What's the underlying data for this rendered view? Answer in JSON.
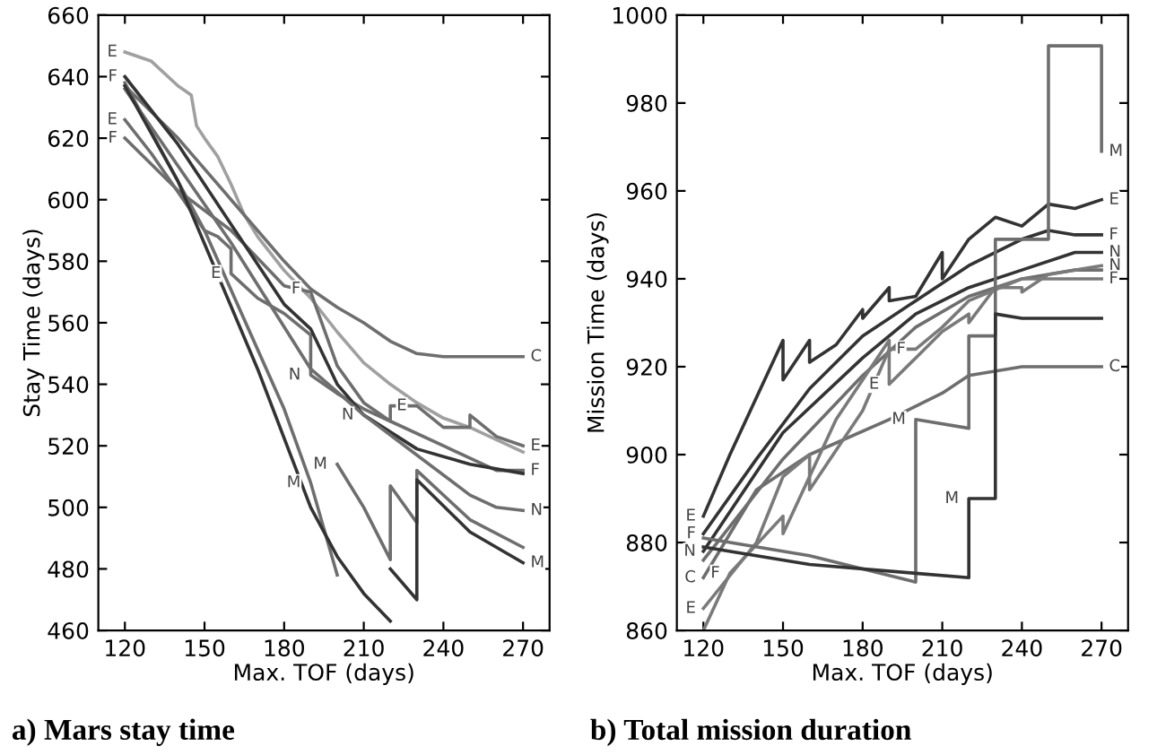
{
  "chart_data": [
    {
      "type": "line",
      "title": "a) Mars stay time",
      "xlabel": "Max. TOF (days)",
      "ylabel": "Stay Time (days)",
      "xlim": [
        110,
        280
      ],
      "xticks": [
        120,
        150,
        180,
        210,
        240,
        270
      ],
      "ylim": [
        460,
        660
      ],
      "yticks": [
        460,
        480,
        500,
        520,
        540,
        560,
        580,
        600,
        620,
        640,
        660
      ],
      "grid": false,
      "legend": false,
      "series": [
        {
          "color": "#a0a0a0",
          "x": [
            120,
            130,
            140,
            145,
            147,
            150,
            155,
            160,
            165,
            170,
            180,
            190,
            200,
            210,
            220,
            230,
            240,
            250,
            260,
            270
          ],
          "values": [
            648,
            645,
            637,
            634,
            624,
            620,
            614,
            605,
            595,
            588,
            577,
            568,
            557,
            547,
            540,
            534,
            529,
            526,
            522,
            518
          ]
        },
        {
          "color": "#6e6e6e",
          "x": [
            120,
            140,
            160,
            180,
            190,
            200,
            210,
            220,
            230,
            240,
            270
          ],
          "values": [
            637,
            620,
            600,
            580,
            571,
            565,
            560,
            554,
            550,
            549,
            549
          ]
        },
        {
          "color": "#6e6e6e",
          "x": [
            120,
            130,
            150,
            155,
            160,
            160,
            170,
            180,
            190,
            190,
            200,
            210,
            220,
            220,
            230,
            240,
            250,
            250,
            260,
            270
          ],
          "values": [
            626,
            615,
            590,
            588,
            584,
            576,
            568,
            563,
            556,
            543,
            537,
            532,
            528,
            533,
            533,
            526,
            526,
            530,
            523,
            520
          ]
        },
        {
          "color": "#6e6e6e",
          "x": [
            120,
            140,
            160,
            180,
            190,
            200,
            210,
            220,
            240,
            260,
            270
          ],
          "values": [
            620,
            603,
            590,
            572,
            570,
            546,
            534,
            528,
            520,
            512,
            512
          ]
        },
        {
          "color": "#333333",
          "x": [
            120,
            140,
            160,
            180,
            190,
            200,
            210,
            230,
            250,
            270
          ],
          "values": [
            640,
            618,
            592,
            566,
            558,
            540,
            530,
            519,
            514,
            511
          ]
        },
        {
          "color": "#6e6e6e",
          "x": [
            120,
            160,
            190,
            210,
            230,
            250,
            260,
            270
          ],
          "values": [
            636,
            586,
            545,
            530,
            517,
            504,
            500,
            499
          ]
        },
        {
          "color": "#6e6e6e",
          "x": [
            120,
            150,
            180,
            190,
            200
          ],
          "values": [
            638,
            590,
            532,
            508,
            478
          ]
        },
        {
          "color": "#333333",
          "x": [
            120,
            140,
            170,
            190,
            200,
            210,
            220
          ],
          "values": [
            637,
            606,
            545,
            500,
            484,
            472,
            463
          ]
        },
        {
          "color": "#6e6e6e",
          "x": [
            200,
            210,
            220,
            220,
            230,
            230,
            250,
            270
          ],
          "values": [
            514,
            500,
            483,
            507,
            495,
            512,
            496,
            487
          ]
        },
        {
          "color": "#333333",
          "x": [
            220,
            230,
            230,
            250,
            270
          ],
          "values": [
            480,
            470,
            509,
            492,
            482
          ]
        }
      ],
      "annotations": [
        {
          "text": "E",
          "x": 120,
          "y": 648
        },
        {
          "text": "F",
          "x": 120,
          "y": 640
        },
        {
          "text": "E",
          "x": 120,
          "y": 626
        },
        {
          "text": "F",
          "x": 120,
          "y": 620
        },
        {
          "text": "F",
          "x": 190,
          "y": 571
        },
        {
          "text": "E",
          "x": 160,
          "y": 576
        },
        {
          "text": "N",
          "x": 190,
          "y": 543
        },
        {
          "text": "E",
          "x": 230,
          "y": 533
        },
        {
          "text": "N",
          "x": 210,
          "y": 530
        },
        {
          "text": "M",
          "x": 190,
          "y": 508
        },
        {
          "text": "M",
          "x": 200,
          "y": 514
        },
        {
          "text": "C",
          "x": 270,
          "y": 549
        },
        {
          "text": "E",
          "x": 270,
          "y": 520
        },
        {
          "text": "F",
          "x": 270,
          "y": 512
        },
        {
          "text": "N",
          "x": 270,
          "y": 499
        },
        {
          "text": "M",
          "x": 270,
          "y": 482
        }
      ]
    },
    {
      "type": "line",
      "title": "b) Total mission duration",
      "xlabel": "Max. TOF (days)",
      "ylabel": "Mission Time (days)",
      "xlim": [
        110,
        280
      ],
      "xticks": [
        120,
        150,
        180,
        210,
        240,
        270
      ],
      "ylim": [
        860,
        1000
      ],
      "yticks": [
        860,
        880,
        900,
        920,
        940,
        960,
        980,
        1000
      ],
      "grid": false,
      "legend": false,
      "series": [
        {
          "color": "#333333",
          "x": [
            120,
            130,
            150,
            150,
            160,
            160,
            170,
            180,
            180,
            190,
            190,
            200,
            210,
            210,
            220,
            230,
            240,
            250,
            260,
            270
          ],
          "values": [
            886,
            900,
            926,
            917,
            926,
            921,
            925,
            933,
            931,
            938,
            935,
            936,
            946,
            940,
            949,
            954,
            952,
            957,
            956,
            958
          ]
        },
        {
          "color": "#333333",
          "x": [
            120,
            140,
            160,
            180,
            200,
            220,
            240,
            250,
            260,
            270
          ],
          "values": [
            882,
            899,
            915,
            927,
            935,
            943,
            949,
            951,
            950,
            950
          ]
        },
        {
          "color": "#333333",
          "x": [
            120,
            150,
            180,
            200,
            220,
            240,
            260,
            270
          ],
          "values": [
            878,
            905,
            922,
            932,
            938,
            942,
            946,
            946
          ]
        },
        {
          "color": "#6e6e6e",
          "x": [
            120,
            150,
            180,
            200,
            220,
            240,
            260,
            270
          ],
          "values": [
            876,
            899,
            918,
            929,
            936,
            940,
            942,
            942
          ]
        },
        {
          "color": "#6e6e6e",
          "x": [
            120,
            140,
            160,
            190,
            210,
            220,
            240,
            270
          ],
          "values": [
            872,
            892,
            900,
            908,
            914,
            918,
            920,
            920
          ]
        },
        {
          "color": "#7a7a7a",
          "x": [
            120,
            140,
            150,
            160,
            160,
            180,
            190,
            190,
            200,
            210,
            220,
            220,
            230,
            240,
            240,
            250,
            270
          ],
          "values": [
            865,
            880,
            895,
            900,
            892,
            910,
            924,
            916,
            922,
            928,
            932,
            930,
            938,
            938,
            937,
            941,
            943
          ]
        },
        {
          "color": "#7a7a7a",
          "x": [
            120,
            130,
            150,
            150,
            170,
            190,
            190,
            200,
            210,
            220,
            240,
            270
          ],
          "values": [
            860,
            873,
            886,
            882,
            908,
            926,
            924,
            924,
            929,
            935,
            940,
            940
          ]
        },
        {
          "color": "#6e6e6e",
          "x": [
            120,
            160,
            200,
            200,
            220,
            220,
            230,
            230,
            250,
            250,
            270,
            270
          ],
          "values": [
            881,
            877,
            871,
            908,
            906,
            927,
            927,
            949,
            949,
            993,
            993,
            969
          ]
        },
        {
          "color": "#333333",
          "x": [
            120,
            160,
            200,
            220,
            220,
            230,
            230,
            240,
            270
          ],
          "values": [
            879,
            875,
            873,
            872,
            890,
            890,
            932,
            931,
            931
          ]
        }
      ],
      "annotations": [
        {
          "text": "E",
          "x": 120,
          "y": 886
        },
        {
          "text": "F",
          "x": 120,
          "y": 882
        },
        {
          "text": "N",
          "x": 120,
          "y": 878
        },
        {
          "text": "C",
          "x": 120,
          "y": 872
        },
        {
          "text": "E",
          "x": 120,
          "y": 865
        },
        {
          "text": "F",
          "x": 130,
          "y": 873
        },
        {
          "text": "M",
          "x": 270,
          "y": 969
        },
        {
          "text": "E",
          "x": 270,
          "y": 958
        },
        {
          "text": "F",
          "x": 270,
          "y": 950
        },
        {
          "text": "N",
          "x": 270,
          "y": 946
        },
        {
          "text": "N",
          "x": 270,
          "y": 943
        },
        {
          "text": "F",
          "x": 270,
          "y": 940
        },
        {
          "text": "C",
          "x": 270,
          "y": 920
        },
        {
          "text": "F",
          "x": 200,
          "y": 924
        },
        {
          "text": "E",
          "x": 190,
          "y": 916
        },
        {
          "text": "M",
          "x": 200,
          "y": 908
        },
        {
          "text": "M",
          "x": 220,
          "y": 890
        }
      ]
    }
  ]
}
